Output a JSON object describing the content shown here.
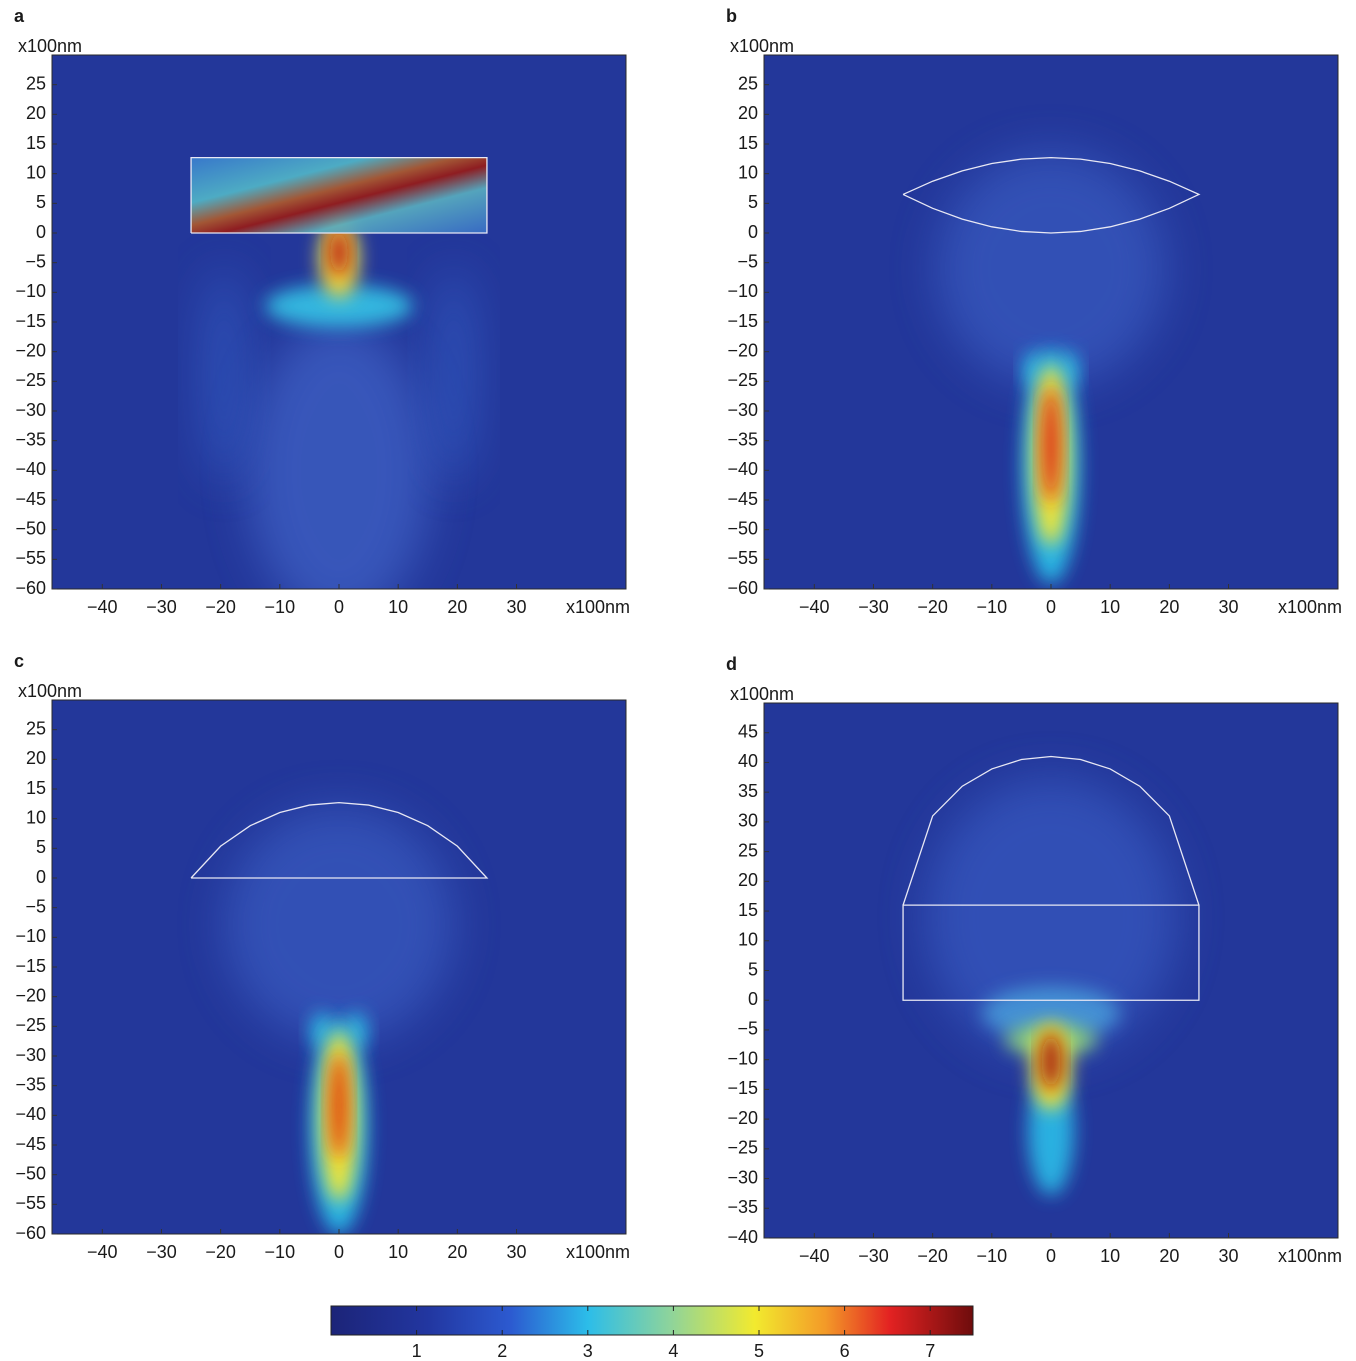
{
  "chart_data": [
    {
      "type": "heatmap",
      "panel_label": "a",
      "x_label": "x100nm",
      "y_label": "x100nm",
      "colormap": "jet",
      "xlim": [
        -48.5,
        48.5
      ],
      "ylim": [
        -60,
        30
      ],
      "xticks": [
        {
          "value": -40,
          "label": "−40"
        },
        {
          "value": -30,
          "label": "−30"
        },
        {
          "value": -20,
          "label": "−20"
        },
        {
          "value": -10,
          "label": "−10"
        },
        0,
        10,
        20,
        30
      ],
      "yticks": [
        25,
        20,
        15,
        10,
        5,
        0,
        {
          "value": -5,
          "label": "−5"
        },
        {
          "value": -10,
          "label": "−10"
        },
        {
          "value": -15,
          "label": "−15"
        },
        {
          "value": -20,
          "label": "−20"
        },
        {
          "value": -25,
          "label": "−25"
        },
        {
          "value": -30,
          "label": "−30"
        },
        {
          "value": -35,
          "label": "−35"
        },
        {
          "value": -40,
          "label": "−40"
        },
        {
          "value": -45,
          "label": "−45"
        },
        {
          "value": -50,
          "label": "−50"
        },
        {
          "value": -55,
          "label": "−55"
        },
        {
          "value": -60,
          "label": "−60"
        }
      ],
      "outline": {
        "x": [
          -25,
          25,
          25,
          -25,
          -25
        ],
        "y": [
          0,
          0,
          12.7,
          12.7,
          0
        ]
      }
    },
    {
      "type": "heatmap",
      "panel_label": "b",
      "x_label": "x100nm",
      "y_label": "x100nm",
      "colormap": "jet",
      "xlim": [
        -48.5,
        48.5
      ],
      "ylim": [
        -60,
        30
      ],
      "xticks": [
        {
          "value": -40,
          "label": "−40"
        },
        {
          "value": -30,
          "label": "−30"
        },
        {
          "value": -20,
          "label": "−20"
        },
        {
          "value": -10,
          "label": "−10"
        },
        0,
        10,
        20,
        30
      ],
      "yticks": [
        25,
        20,
        15,
        10,
        5,
        0,
        {
          "value": -5,
          "label": "−5"
        },
        {
          "value": -10,
          "label": "−10"
        },
        {
          "value": -15,
          "label": "−15"
        },
        {
          "value": -20,
          "label": "−20"
        },
        {
          "value": -25,
          "label": "−25"
        },
        {
          "value": -30,
          "label": "−30"
        },
        {
          "value": -35,
          "label": "−35"
        },
        {
          "value": -40,
          "label": "−40"
        },
        {
          "value": -45,
          "label": "−45"
        },
        {
          "value": -50,
          "label": "−50"
        },
        {
          "value": -55,
          "label": "−55"
        },
        {
          "value": -60,
          "label": "−60"
        }
      ],
      "outline": {
        "x": [
          -25,
          -20,
          -15,
          -10,
          -5,
          0,
          5,
          10,
          15,
          20,
          25,
          20,
          15,
          10,
          5,
          0,
          -5,
          -10,
          -15,
          -20,
          -25
        ],
        "y": [
          6.5,
          8.73,
          10.47,
          11.71,
          12.45,
          12.7,
          12.45,
          11.71,
          10.47,
          8.73,
          6.5,
          4.16,
          2.34,
          1.04,
          0.26,
          0,
          0.26,
          1.04,
          2.34,
          4.16,
          6.5
        ]
      }
    },
    {
      "type": "heatmap",
      "panel_label": "c",
      "x_label": "x100nm",
      "y_label": "x100nm",
      "colormap": "jet",
      "xlim": [
        -48.5,
        48.5
      ],
      "ylim": [
        -60,
        30
      ],
      "xticks": [
        {
          "value": -40,
          "label": "−40"
        },
        {
          "value": -30,
          "label": "−30"
        },
        {
          "value": -20,
          "label": "−20"
        },
        {
          "value": -10,
          "label": "−10"
        },
        0,
        10,
        20,
        30
      ],
      "yticks": [
        25,
        20,
        15,
        10,
        5,
        0,
        {
          "value": -5,
          "label": "−5"
        },
        {
          "value": -10,
          "label": "−10"
        },
        {
          "value": -15,
          "label": "−15"
        },
        {
          "value": -20,
          "label": "−20"
        },
        {
          "value": -25,
          "label": "−25"
        },
        {
          "value": -30,
          "label": "−30"
        },
        {
          "value": -35,
          "label": "−35"
        },
        {
          "value": -40,
          "label": "−40"
        },
        {
          "value": -45,
          "label": "−45"
        },
        {
          "value": -50,
          "label": "−50"
        },
        {
          "value": -55,
          "label": "−55"
        },
        {
          "value": -60,
          "label": "−60"
        }
      ],
      "outline": {
        "x": [
          -25,
          -20,
          -15,
          -10,
          -5,
          0,
          5,
          10,
          15,
          20,
          25,
          -25
        ],
        "y": [
          0,
          5.37,
          8.82,
          11.04,
          12.29,
          12.7,
          12.29,
          11.04,
          8.82,
          5.37,
          0,
          0
        ]
      }
    },
    {
      "type": "heatmap",
      "panel_label": "d",
      "x_label": "x100nm",
      "y_label": "x100nm",
      "colormap": "jet",
      "xlim": [
        -48.5,
        48.5
      ],
      "ylim": [
        -40,
        50
      ],
      "xticks": [
        {
          "value": -40,
          "label": "−40"
        },
        {
          "value": -30,
          "label": "−30"
        },
        {
          "value": -20,
          "label": "−20"
        },
        {
          "value": -10,
          "label": "−10"
        },
        0,
        10,
        20,
        30
      ],
      "yticks": [
        45,
        40,
        35,
        30,
        25,
        20,
        15,
        10,
        5,
        0,
        {
          "value": -5,
          "label": "−5"
        },
        {
          "value": -10,
          "label": "−10"
        },
        {
          "value": -15,
          "label": "−15"
        },
        {
          "value": -20,
          "label": "−20"
        },
        {
          "value": -25,
          "label": "−25"
        },
        {
          "value": -30,
          "label": "−30"
        },
        {
          "value": -35,
          "label": "−35"
        },
        {
          "value": -40,
          "label": "−40"
        }
      ],
      "outline": {
        "x": [
          -25,
          -20,
          -15,
          -10,
          -5,
          0,
          5,
          10,
          15,
          20,
          25,
          25,
          -25,
          -25,
          25
        ],
        "y": [
          16,
          31,
          36,
          38.91,
          40.49,
          41,
          40.49,
          38.91,
          36,
          31,
          16,
          0,
          0,
          16,
          16
        ]
      }
    },
    {
      "type": "colorbar",
      "colormap": "jet",
      "xlim": [
        0,
        7.5
      ],
      "xticks": [
        1,
        2,
        3,
        4,
        5,
        6,
        7
      ]
    }
  ]
}
